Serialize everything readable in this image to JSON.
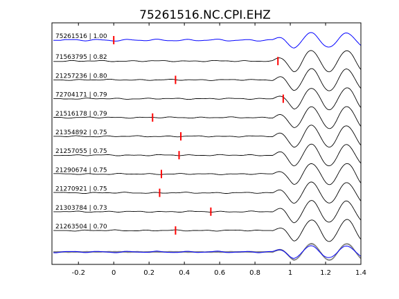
{
  "chart_data": {
    "type": "line",
    "title": "75261516.NC.CPI.EHZ",
    "xlabel": "",
    "ylabel": "",
    "xlim": [
      -0.35,
      1.4
    ],
    "xticks": [
      -0.2,
      0,
      0.2,
      0.4,
      0.6,
      0.8,
      1,
      1.2,
      1.4
    ],
    "xtick_labels": [
      "-0.2",
      "0",
      "0.2",
      "0.4",
      "0.6",
      "0.8",
      "1",
      "1.2",
      "1.4"
    ],
    "grid": false,
    "reference_trace_color": "#0000ff",
    "trace_color": "#000000",
    "stack_trace_color": "#808080",
    "marker_color": "#ff0000",
    "traces": [
      {
        "label": "75261516 | 1.00",
        "id": "75261516",
        "correlation": 1.0,
        "pick_time": 0.0,
        "reference": true
      },
      {
        "label": "71563795 | 0.82",
        "id": "71563795",
        "correlation": 0.82,
        "pick_time": 0.93
      },
      {
        "label": "21257236 | 0.80",
        "id": "21257236",
        "correlation": 0.8,
        "pick_time": 0.35
      },
      {
        "label": "72704171 | 0.79",
        "id": "72704171",
        "correlation": 0.79,
        "pick_time": 0.96
      },
      {
        "label": "21516178 | 0.79",
        "id": "21516178",
        "correlation": 0.79,
        "pick_time": 0.22
      },
      {
        "label": "21354892 | 0.75",
        "id": "21354892",
        "correlation": 0.75,
        "pick_time": 0.38
      },
      {
        "label": "21257055 | 0.75",
        "id": "21257055",
        "correlation": 0.75,
        "pick_time": 0.37
      },
      {
        "label": "21290674 | 0.75",
        "id": "21290674",
        "correlation": 0.75,
        "pick_time": 0.27
      },
      {
        "label": "21270921 | 0.75",
        "id": "21270921",
        "correlation": 0.75,
        "pick_time": 0.26
      },
      {
        "label": "21303784 | 0.73",
        "id": "21303784",
        "correlation": 0.73,
        "pick_time": 0.55
      },
      {
        "label": "21263504 | 0.70",
        "id": "21263504",
        "correlation": 0.7,
        "pick_time": 0.35
      }
    ]
  }
}
